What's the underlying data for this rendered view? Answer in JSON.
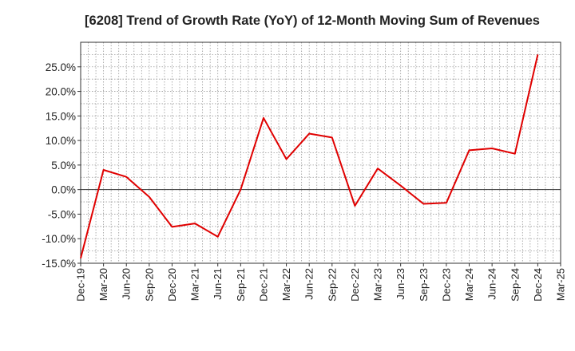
{
  "chart_data": {
    "type": "line",
    "title": "[6208]  Trend of Growth Rate (YoY) of 12-Month Moving Sum of Revenues",
    "xlabel": "",
    "ylabel": "",
    "x_ticks": [
      "Dec-19",
      "Mar-20",
      "Jun-20",
      "Sep-20",
      "Dec-20",
      "Mar-21",
      "Jun-21",
      "Sep-21",
      "Dec-21",
      "Mar-22",
      "Jun-22",
      "Sep-22",
      "Dec-22",
      "Mar-23",
      "Jun-23",
      "Sep-23",
      "Dec-23",
      "Mar-24",
      "Jun-24",
      "Sep-24",
      "Dec-24",
      "Mar-25"
    ],
    "y_ticks": [
      "25.0%",
      "20.0%",
      "15.0%",
      "10.0%",
      "5.0%",
      "0.0%",
      "-5.0%",
      "-10.0%",
      "-15.0%"
    ],
    "ylim": [
      -15,
      30
    ],
    "grid": true,
    "series": [
      {
        "color": "#e00000",
        "x": [
          "Dec-19",
          "Mar-20",
          "Jun-20",
          "Sep-20",
          "Dec-20",
          "Mar-21",
          "Jun-21",
          "Sep-21",
          "Dec-21",
          "Mar-22",
          "Jun-22",
          "Sep-22",
          "Dec-22",
          "Mar-23",
          "Jun-23",
          "Sep-23",
          "Dec-23",
          "Mar-24",
          "Jun-24",
          "Sep-24",
          "Dec-24"
        ],
        "values": [
          -14.0,
          4.0,
          2.6,
          -1.5,
          -7.6,
          -6.9,
          -9.6,
          0.0,
          14.6,
          6.2,
          11.4,
          10.6,
          -3.3,
          4.3,
          0.8,
          -2.9,
          -2.7,
          8.0,
          8.4,
          7.3,
          27.5
        ]
      }
    ]
  }
}
